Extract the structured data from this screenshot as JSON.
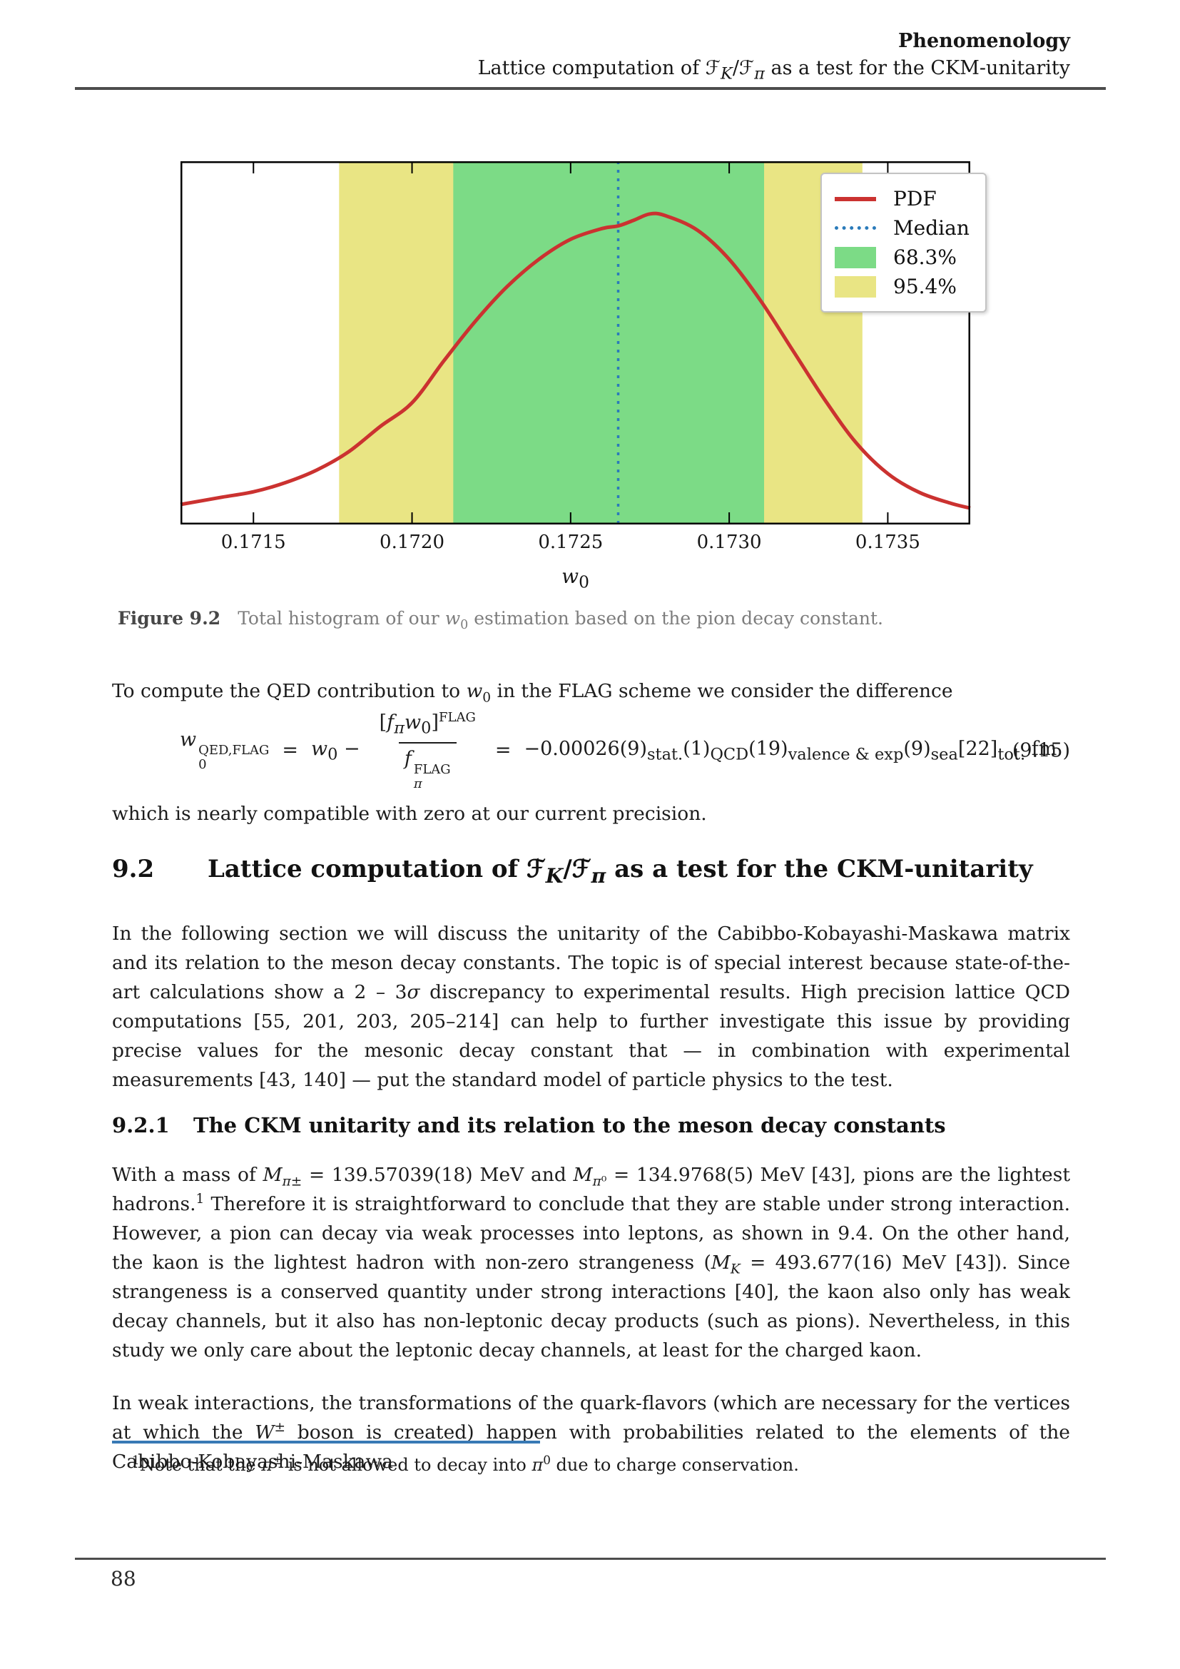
{
  "header": {
    "chapter": "Phenomenology",
    "section_html": "Lattice computation of ℱ<sub><i>K</i></sub>/ℱ<sub><i>π</i></sub> as a test for the CKM-unitarity"
  },
  "chart_data": {
    "type": "line",
    "title": "",
    "xlabel_html": "<i>w</i><sub>0</sub>",
    "ylabel": "",
    "xlim": [
      0.17127,
      0.17376
    ],
    "ylim": [
      0,
      1
    ],
    "grid": false,
    "legend_position": "upper right",
    "x_tick_values": [
      0.1715,
      0.172,
      0.1725,
      0.173,
      0.1735
    ],
    "x_tick_labels": [
      "0.1715",
      "0.1720",
      "0.1725",
      "0.1730",
      "0.1735"
    ],
    "median": 0.17265,
    "interval_68_3": [
      0.17213,
      0.17311
    ],
    "interval_95_4": [
      0.17177,
      0.17342
    ],
    "series": [
      {
        "name": "PDF",
        "x": [
          0.17127,
          0.1714,
          0.1715,
          0.1716,
          0.1717,
          0.1718,
          0.1719,
          0.172,
          0.1721,
          0.1722,
          0.1723,
          0.1724,
          0.1725,
          0.1726,
          0.17265,
          0.1727,
          0.17275,
          0.1728,
          0.1729,
          0.173,
          0.1731,
          0.1732,
          0.1733,
          0.1734,
          0.1735,
          0.1736,
          0.1737,
          0.17376
        ],
        "y": [
          0.055,
          0.075,
          0.09,
          0.115,
          0.15,
          0.2,
          0.27,
          0.335,
          0.45,
          0.56,
          0.655,
          0.73,
          0.785,
          0.815,
          0.822,
          0.838,
          0.855,
          0.85,
          0.81,
          0.73,
          0.615,
          0.48,
          0.345,
          0.225,
          0.14,
          0.088,
          0.058,
          0.045
        ]
      }
    ],
    "legend": [
      {
        "label": "PDF",
        "type": "line",
        "color": "#cb3230"
      },
      {
        "label": "Median",
        "type": "dotted",
        "color": "#2b7bba"
      },
      {
        "label": "68.3%",
        "type": "patch",
        "color": "#7cdb86"
      },
      {
        "label": "95.4%",
        "type": "patch",
        "color": "#e9e584"
      }
    ],
    "colors": {
      "pdf_line": "#cb3230",
      "median_line": "#2b7bba",
      "band_68": "#7cdb86",
      "band_95": "#e9e584",
      "axis": "#000000"
    }
  },
  "figure": {
    "caption_label": "Figure 9.2",
    "caption_html": "Total histogram of our <i>w</i><sub>0</sub> estimation based on the pion decay constant."
  },
  "qed": {
    "intro_html": "To compute the QED contribution to <i>w</i><sub>0</sub> in the FLAG scheme we consider the difference",
    "equation": {
      "lhs_html": "<i>w</i><span class=\"supsub\"><span class=\"ss-top\">QED,FLAG</span><span class=\"ss-bot\">0</span></span>",
      "eq1": "=",
      "mid_html": "<i>w</i><sub>0</sub> −",
      "frac_num_html": "[<i>f</i><sub><i>π</i></sub><i>w</i><sub>0</sub>]<sup class=\"brk\">FLAG</sup>",
      "frac_den_html": "<i>f</i><span class=\"supsub\"><span class=\"ss-top\">FLAG</span><span class=\"ss-bot\"><i>π</i></span></span>",
      "eq2": "=",
      "rhs_html": "−0.00026(9)<sub>stat.</sub>(1)<sub>QCD</sub>(19)<sub>valence&nbsp;&amp;&nbsp;exp</sub>(9)<sub>sea</sub>[22]<sub>tot.</sub> fm",
      "number": "(9.15)"
    },
    "outro_html": "which is nearly compatible with zero at our current precision."
  },
  "section_9_2": {
    "number": "9.2",
    "title_html": "Lattice computation of ℱ<sub><i>K</i></sub>/ℱ<sub><i>π</i></sub> as a test for the CKM-unitarity",
    "paragraph_html": "In the following section we will discuss the unitarity of the Cabibbo-Kobayashi-Maskawa matrix and its relation to the meson decay constants. The topic is of special interest because state-of-the-art calculations show a 2 – 3<i>σ</i> discrepancy to experimental results. High precision lattice QCD computations [55, 201, 203, 205–214] can help to further investigate this issue by providing precise values for the mesonic decay constant that — in combination with experimental measurements [43, 140] — put the standard model of particle physics to the test."
  },
  "section_9_2_1": {
    "number": "9.2.1",
    "title": "The CKM unitarity and its relation to the meson decay constants",
    "paragraph1_html": "With a mass of <i>M</i><sub><i>π</i>±</sub> = 139.57039(18) MeV and <i>M</i><sub><i>π</i>⁰</sub> = 134.9768(5) MeV [43], pions are the lightest hadrons.<sup>1</sup> Therefore it is straightforward to conclude that they are stable under strong interaction. However, a pion can decay via weak processes into leptons, as shown in 9.4. On the other hand, the kaon is the lightest hadron with non-zero strangeness (<i>M</i><sub><i>K</i></sub> = 493.677(16) MeV [43]). Since strangeness is a conserved quantity under strong interactions [40], the kaon also only has weak decay channels, but it also has non-leptonic decay products (such as pions). Nevertheless, in this study we only care about the leptonic decay channels, at least for the charged kaon.",
    "paragraph2_html": "In weak interactions, the transformations of the quark-flavors (which are necessary for the vertices at which the <i>W</i><sup>±</sup> boson is created) happen with probabilities related to the elements of the Cabibbo-Kobayashi-Maskawa"
  },
  "footnote": {
    "html": "<sup>1</sup>Note that the <i>π</i><sup>±</sup> is not allowed to decay into <i>π</i><sup>0</sup> due to charge conservation."
  },
  "footer": {
    "page_number": "88"
  }
}
